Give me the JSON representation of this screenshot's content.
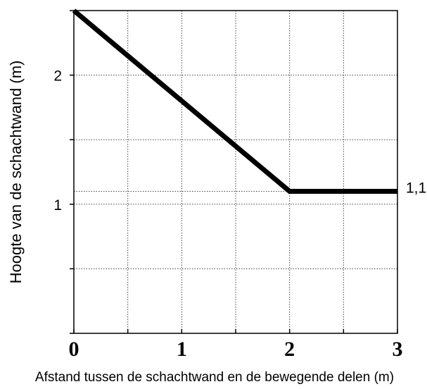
{
  "chart_data": {
    "type": "line",
    "title": "",
    "xlabel": "Afstand tussen de schachtwand en de bewegende delen (m)",
    "ylabel": "Hoogte van de schachtwand (m)",
    "xlim": [
      0,
      3
    ],
    "ylim": [
      0,
      2.5
    ],
    "x_ticks": [
      "0",
      "1",
      "2",
      "3"
    ],
    "y_ticks": [
      "1",
      "2"
    ],
    "grid": true,
    "series": [
      {
        "x": [
          0,
          2,
          3
        ],
        "y": [
          2.5,
          1.1,
          1.1
        ],
        "color": "#000000"
      }
    ],
    "annotations": [
      {
        "text": "1,1",
        "x": 3,
        "y": 1.1
      }
    ]
  }
}
